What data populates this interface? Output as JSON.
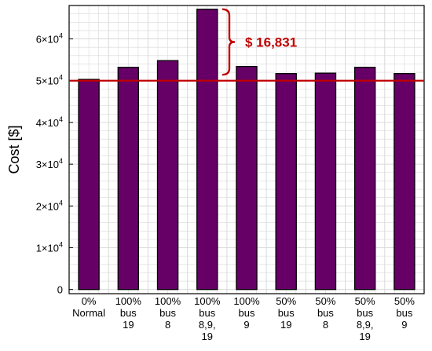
{
  "chart_data": {
    "type": "bar",
    "categories": [
      [
        "0%",
        "Normal"
      ],
      [
        "100%",
        "bus",
        "19"
      ],
      [
        "100%",
        "bus",
        "8"
      ],
      [
        "100%",
        "bus",
        "8,9,",
        "19"
      ],
      [
        "100%",
        "bus",
        "9"
      ],
      [
        "50%",
        "bus",
        "19"
      ],
      [
        "50%",
        "bus",
        "8"
      ],
      [
        "50%",
        "bus",
        "8,9,",
        "19"
      ],
      [
        "50%",
        "bus",
        "9"
      ]
    ],
    "values": [
      50300,
      53200,
      54800,
      67100,
      53400,
      51700,
      51800,
      53200,
      51700
    ],
    "ylabel": "Cost [$]",
    "ylim": [
      -1000,
      68000
    ],
    "yticks": [
      {
        "value": 0,
        "base": "0",
        "exp": ""
      },
      {
        "value": 10000,
        "base": "1×10",
        "exp": "4"
      },
      {
        "value": 20000,
        "base": "2×10",
        "exp": "4"
      },
      {
        "value": 30000,
        "base": "3×10",
        "exp": "4"
      },
      {
        "value": 40000,
        "base": "4×10",
        "exp": "4"
      },
      {
        "value": 50000,
        "base": "5×10",
        "exp": "4"
      },
      {
        "value": 60000,
        "base": "6×10",
        "exp": "4"
      }
    ],
    "reference_line": 50000,
    "annotation": {
      "text": "$ 16,831",
      "from": 50300,
      "to": 67100
    },
    "grid": true,
    "colors": {
      "bar": "#660066",
      "bar_edge": "#000000",
      "reference": "#c00000",
      "annotation": "#c00000",
      "grid": "#d9d9d9"
    }
  }
}
